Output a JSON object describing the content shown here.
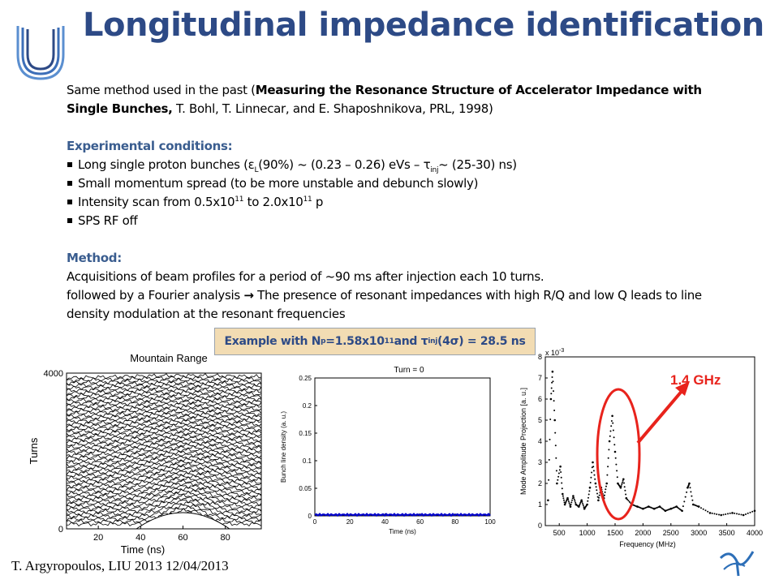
{
  "title": "Longitudinal impedance identification",
  "intro": {
    "prefix": "Same method used in the past (",
    "ref_title": "Measuring the Resonance Structure of Accelerator Impedance with Single Bunches,",
    "ref_rest": " T. Bohl, T. Linnecar, and E. Shaposhnikova, PRL, 1998)"
  },
  "conditions": {
    "heading": "Experimental conditions:",
    "item1": {
      "a": "Long single proton bunches (ε",
      "sub1": "L",
      "b": "(90%)  ~ (0.23 – 0.26) eVs – τ",
      "sub2": "inj",
      "c": "~ (25-30) ns)"
    },
    "item2": "Small momentum spread (to be more unstable and debunch slowly)",
    "item3": {
      "a": "Intensity scan from 0.5x10",
      "sup1": "11",
      "b": " to 2.0x10",
      "sup2": "11",
      "c": " p"
    },
    "item4": "SPS RF off"
  },
  "method": {
    "heading": "Method:",
    "line1": "Acquisitions of beam profiles for a period of ~90 ms after injection each 10 turns.",
    "line2_a": "followed by a Fourier analysis ",
    "line2_arrow": "→",
    "line2_b": " The presence of resonant impedances with high R/Q and low Q leads to line density modulation at the resonant frequencies"
  },
  "example": {
    "a": "Example with N",
    "sub1": "p",
    "b": "=1.58x10",
    "sup1": "11",
    "c": " and τ",
    "sub2": "inj",
    "d": "(4σ) = 28.5 ns"
  },
  "footer": "T. Argyropoulos, LIU 2013 12/04/2013",
  "chart_data": [
    {
      "type": "line",
      "title": "Mountain Range",
      "xlabel": "Time (ns)",
      "ylabel": "Turns",
      "xticks": [
        "20",
        "40",
        "60",
        "80"
      ],
      "yticks": [
        "0",
        "4000"
      ],
      "xlim": [
        5,
        97
      ],
      "ylim": [
        0,
        4000
      ]
    },
    {
      "type": "line",
      "title": "Turn = 0",
      "xlabel": "Time (ns)",
      "ylabel": "Bunch line density (a. u.)",
      "xticks": [
        "0",
        "20",
        "40",
        "60",
        "80",
        "100"
      ],
      "yticks": [
        "0",
        "0.05",
        "0.1",
        "0.15",
        "0.2",
        "0.25"
      ],
      "xlim": [
        0,
        100
      ],
      "ylim": [
        0,
        0.25
      ],
      "series": [
        {
          "x": [
            0,
            10,
            20,
            30,
            40,
            50,
            60,
            70,
            80,
            90,
            100
          ],
          "values": [
            0.002,
            0.002,
            0.002,
            0.002,
            0.002,
            0.002,
            0.002,
            0.002,
            0.002,
            0.002,
            0.002
          ]
        }
      ],
      "color": "#0000cc"
    },
    {
      "type": "scatter",
      "xlabel": "Frequency (MHz)",
      "ylabel": "Mode Amplitude Projection [a. u.]",
      "scale_label": "x 10",
      "scale_exp": "-3",
      "xticks": [
        "500",
        "1000",
        "1500",
        "2000",
        "2500",
        "3000",
        "3500",
        "4000"
      ],
      "yticks": [
        "0",
        "1",
        "2",
        "3",
        "4",
        "5",
        "6",
        "7",
        "8"
      ],
      "xlim": [
        250,
        4000
      ],
      "ylim": [
        0,
        8
      ],
      "annotation": "1.4 GHz",
      "annotation_color": "#e8231c",
      "points": [
        [
          300,
          1.2
        ],
        [
          350,
          6.0
        ],
        [
          380,
          7.3
        ],
        [
          420,
          5.0
        ],
        [
          460,
          2.0
        ],
        [
          520,
          2.8
        ],
        [
          560,
          1.5
        ],
        [
          600,
          1.0
        ],
        [
          650,
          1.3
        ],
        [
          700,
          0.9
        ],
        [
          750,
          1.4
        ],
        [
          800,
          1.0
        ],
        [
          850,
          0.9
        ],
        [
          900,
          1.2
        ],
        [
          950,
          0.8
        ],
        [
          1000,
          1.0
        ],
        [
          1050,
          1.8
        ],
        [
          1100,
          3.0
        ],
        [
          1150,
          2.0
        ],
        [
          1200,
          1.2
        ],
        [
          1250,
          1.8
        ],
        [
          1300,
          1.3
        ],
        [
          1350,
          2.0
        ],
        [
          1400,
          4.0
        ],
        [
          1450,
          5.2
        ],
        [
          1500,
          3.5
        ],
        [
          1550,
          2.0
        ],
        [
          1600,
          1.8
        ],
        [
          1650,
          2.2
        ],
        [
          1700,
          1.3
        ],
        [
          1800,
          1.0
        ],
        [
          1900,
          0.9
        ],
        [
          2000,
          0.8
        ],
        [
          2100,
          0.9
        ],
        [
          2200,
          0.8
        ],
        [
          2300,
          0.9
        ],
        [
          2400,
          0.7
        ],
        [
          2500,
          0.8
        ],
        [
          2600,
          0.9
        ],
        [
          2700,
          0.7
        ],
        [
          2800,
          1.8
        ],
        [
          2830,
          2.0
        ],
        [
          2900,
          1.0
        ],
        [
          3000,
          0.9
        ],
        [
          3200,
          0.6
        ],
        [
          3400,
          0.5
        ],
        [
          3600,
          0.6
        ],
        [
          3800,
          0.5
        ],
        [
          4000,
          0.7
        ]
      ]
    }
  ]
}
